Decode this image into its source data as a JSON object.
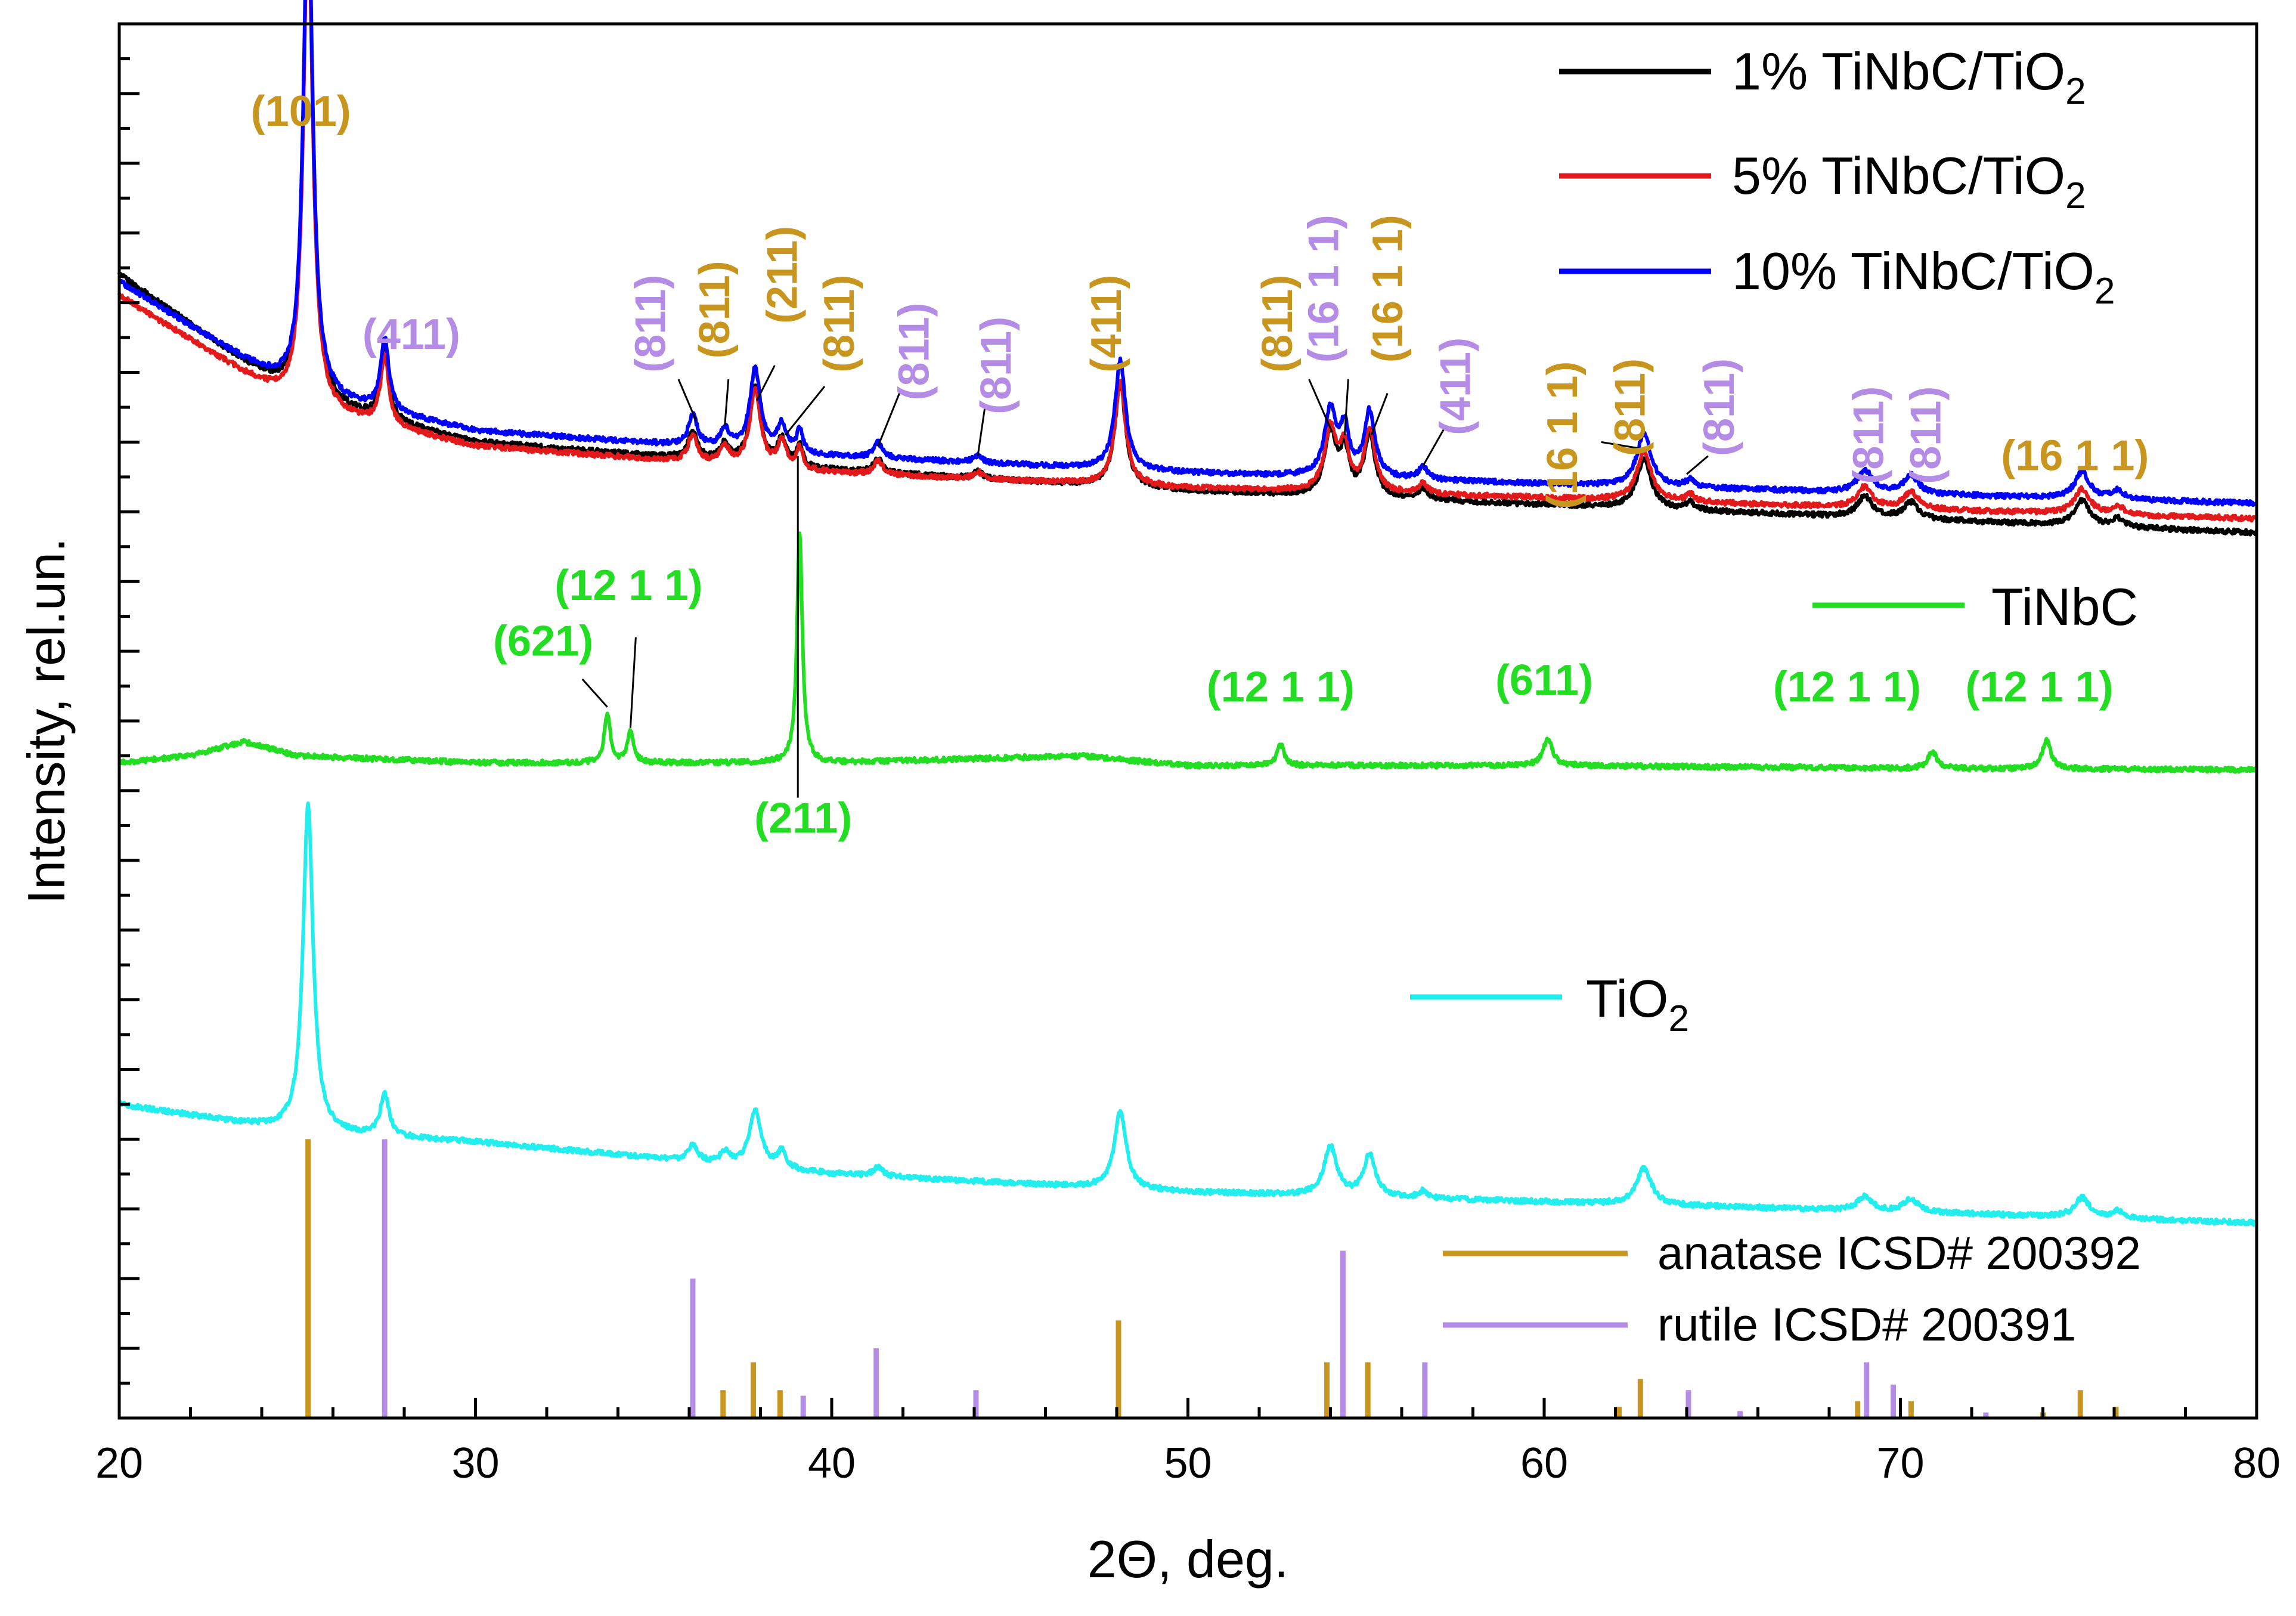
{
  "colors": {
    "black": "#000000",
    "red": "#e31a1c",
    "blue": "#0000ff",
    "green": "#22dd22",
    "cyan": "#22eeee",
    "anatase": "#c8961e",
    "rutile": "#b48ce6"
  },
  "chart_data": {
    "type": "line",
    "xlabel": "2Θ, deg.",
    "ylabel": "Intensity, rel.un.",
    "xlim": [
      20,
      80
    ],
    "x_ticks": [
      "20",
      "30",
      "40",
      "50",
      "60",
      "70",
      "80"
    ],
    "y_ticklabels_shown": false,
    "legend": [
      {
        "key": "s1",
        "text": "1% TiNbC/TiO",
        "sub": "2",
        "color": "#000000"
      },
      {
        "key": "s5",
        "text": "5% TiNbC/TiO",
        "sub": "2",
        "color": "#e31a1c"
      },
      {
        "key": "s10",
        "text": "10% TiNbC/TiO",
        "sub": "2",
        "color": "#0000ff"
      },
      {
        "key": "tinbc",
        "text": "TiNbC",
        "sub": "",
        "color": "#22dd22"
      },
      {
        "key": "tio2",
        "text": "TiO",
        "sub": "2",
        "color": "#22eeee"
      },
      {
        "key": "anatase",
        "text": "anatase ICSD# 200392",
        "sub": "",
        "color": "#c8961e"
      },
      {
        "key": "rutile",
        "text": "rutile      ICSD# 200391",
        "sub": "",
        "color": "#b48ce6"
      }
    ],
    "series": [
      {
        "name": "1% TiNbC/TiO2",
        "color": "#000000",
        "baseline": [
          [
            20,
            0.82
          ],
          [
            25,
            0.73
          ],
          [
            30,
            0.7
          ],
          [
            40,
            0.68
          ],
          [
            50,
            0.665
          ],
          [
            60,
            0.655
          ],
          [
            70,
            0.645
          ],
          [
            80,
            0.635
          ]
        ],
        "peaks": [
          [
            25.3,
            0.355,
            0.16
          ],
          [
            27.45,
            0.05,
            0.14
          ],
          [
            36.1,
            0.02,
            0.15
          ],
          [
            37.0,
            0.012,
            0.15
          ],
          [
            37.85,
            0.055,
            0.18
          ],
          [
            38.6,
            0.018,
            0.15
          ],
          [
            39.1,
            0.015,
            0.1
          ],
          [
            41.3,
            0.01,
            0.15
          ],
          [
            44.1,
            0.005,
            0.15
          ],
          [
            48.1,
            0.075,
            0.18
          ],
          [
            54.0,
            0.045,
            0.2
          ],
          [
            54.4,
            0.03,
            0.15
          ],
          [
            55.1,
            0.045,
            0.18
          ],
          [
            56.6,
            0.008,
            0.15
          ],
          [
            62.8,
            0.035,
            0.25
          ],
          [
            64.1,
            0.005,
            0.15
          ],
          [
            69.0,
            0.015,
            0.25
          ],
          [
            70.3,
            0.012,
            0.25
          ],
          [
            75.1,
            0.018,
            0.25
          ],
          [
            76.1,
            0.006,
            0.2
          ]
        ]
      },
      {
        "name": "5% TiNbC/TiO2",
        "color": "#e31a1c",
        "baseline": [
          [
            20,
            0.805
          ],
          [
            25,
            0.725
          ],
          [
            30,
            0.697
          ],
          [
            40,
            0.678
          ],
          [
            50,
            0.667
          ],
          [
            60,
            0.66
          ],
          [
            70,
            0.652
          ],
          [
            80,
            0.645
          ]
        ],
        "peaks": [
          [
            25.3,
            0.355,
            0.16
          ],
          [
            27.45,
            0.05,
            0.14
          ],
          [
            36.1,
            0.02,
            0.15
          ],
          [
            37.0,
            0.012,
            0.15
          ],
          [
            37.85,
            0.055,
            0.18
          ],
          [
            38.6,
            0.018,
            0.15
          ],
          [
            39.1,
            0.015,
            0.1
          ],
          [
            41.3,
            0.01,
            0.15
          ],
          [
            44.1,
            0.005,
            0.15
          ],
          [
            48.1,
            0.075,
            0.18
          ],
          [
            54.0,
            0.045,
            0.2
          ],
          [
            54.4,
            0.03,
            0.15
          ],
          [
            55.1,
            0.045,
            0.18
          ],
          [
            56.6,
            0.008,
            0.15
          ],
          [
            62.8,
            0.035,
            0.25
          ],
          [
            64.1,
            0.005,
            0.15
          ],
          [
            69.0,
            0.015,
            0.25
          ],
          [
            70.3,
            0.012,
            0.25
          ],
          [
            75.1,
            0.018,
            0.25
          ],
          [
            76.1,
            0.006,
            0.2
          ]
        ]
      },
      {
        "name": "10% TiNbC/TiO2",
        "color": "#0000ff",
        "baseline": [
          [
            20,
            0.815
          ],
          [
            25,
            0.735
          ],
          [
            30,
            0.708
          ],
          [
            40,
            0.69
          ],
          [
            50,
            0.678
          ],
          [
            60,
            0.67
          ],
          [
            70,
            0.663
          ],
          [
            80,
            0.656
          ]
        ],
        "peaks": [
          [
            25.3,
            0.36,
            0.16
          ],
          [
            27.45,
            0.052,
            0.14
          ],
          [
            36.1,
            0.022,
            0.15
          ],
          [
            37.0,
            0.013,
            0.15
          ],
          [
            37.85,
            0.058,
            0.18
          ],
          [
            38.6,
            0.019,
            0.15
          ],
          [
            39.1,
            0.016,
            0.1
          ],
          [
            41.3,
            0.011,
            0.15
          ],
          [
            44.1,
            0.005,
            0.15
          ],
          [
            48.1,
            0.078,
            0.18
          ],
          [
            54.0,
            0.047,
            0.2
          ],
          [
            54.4,
            0.032,
            0.15
          ],
          [
            55.1,
            0.047,
            0.18
          ],
          [
            56.6,
            0.009,
            0.15
          ],
          [
            62.8,
            0.037,
            0.25
          ],
          [
            64.1,
            0.005,
            0.15
          ],
          [
            69.0,
            0.016,
            0.25
          ],
          [
            70.3,
            0.013,
            0.25
          ],
          [
            75.1,
            0.019,
            0.25
          ],
          [
            76.1,
            0.006,
            0.2
          ]
        ]
      },
      {
        "name": "TiNbC",
        "color": "#22dd22",
        "baseline": [
          [
            20,
            0.47
          ],
          [
            22,
            0.475
          ],
          [
            23.5,
            0.485
          ],
          [
            25,
            0.475
          ],
          [
            30,
            0.47
          ],
          [
            40,
            0.47
          ],
          [
            47,
            0.475
          ],
          [
            50,
            0.468
          ],
          [
            60,
            0.468
          ],
          [
            70,
            0.466
          ],
          [
            80,
            0.465
          ]
        ],
        "peaks": [
          [
            33.7,
            0.035,
            0.1
          ],
          [
            34.35,
            0.022,
            0.1
          ],
          [
            39.1,
            0.165,
            0.09
          ],
          [
            52.6,
            0.015,
            0.12
          ],
          [
            60.1,
            0.02,
            0.15
          ],
          [
            70.9,
            0.012,
            0.15
          ],
          [
            74.1,
            0.02,
            0.15
          ]
        ]
      },
      {
        "name": "TiO2",
        "color": "#22eeee",
        "baseline": [
          [
            20,
            0.225
          ],
          [
            25,
            0.205
          ],
          [
            30,
            0.198
          ],
          [
            40,
            0.175
          ],
          [
            50,
            0.162
          ],
          [
            60,
            0.155
          ],
          [
            70,
            0.148
          ],
          [
            80,
            0.14
          ]
        ],
        "peaks": [
          [
            25.3,
            0.235,
            0.17
          ],
          [
            27.45,
            0.03,
            0.15
          ],
          [
            36.1,
            0.012,
            0.15
          ],
          [
            37.0,
            0.008,
            0.15
          ],
          [
            37.85,
            0.04,
            0.2
          ],
          [
            38.6,
            0.012,
            0.15
          ],
          [
            41.3,
            0.007,
            0.15
          ],
          [
            48.1,
            0.055,
            0.2
          ],
          [
            54.0,
            0.035,
            0.22
          ],
          [
            55.1,
            0.03,
            0.2
          ],
          [
            56.6,
            0.005,
            0.15
          ],
          [
            62.8,
            0.026,
            0.25
          ],
          [
            69.0,
            0.01,
            0.25
          ],
          [
            70.3,
            0.009,
            0.25
          ],
          [
            75.1,
            0.014,
            0.25
          ],
          [
            76.1,
            0.005,
            0.2
          ]
        ]
      }
    ],
    "reference_sticks": {
      "anatase": {
        "name": "anatase ICSD# 200392",
        "color": "#c8961e",
        "sticks": [
          [
            25.3,
            0.2
          ],
          [
            36.95,
            0.02
          ],
          [
            37.8,
            0.04
          ],
          [
            38.55,
            0.02
          ],
          [
            48.05,
            0.07
          ],
          [
            53.9,
            0.04
          ],
          [
            55.05,
            0.04
          ],
          [
            62.1,
            0.008
          ],
          [
            62.7,
            0.028
          ],
          [
            68.8,
            0.012
          ],
          [
            70.3,
            0.012
          ],
          [
            74.0,
            0.004
          ],
          [
            75.05,
            0.02
          ],
          [
            76.05,
            0.008
          ]
        ]
      },
      "rutile": {
        "name": "rutile      ICSD# 200391",
        "color": "#b48ce6",
        "sticks": [
          [
            27.45,
            0.2
          ],
          [
            36.1,
            0.1
          ],
          [
            39.2,
            0.016
          ],
          [
            41.25,
            0.05
          ],
          [
            44.05,
            0.02
          ],
          [
            54.35,
            0.12
          ],
          [
            56.65,
            0.04
          ],
          [
            64.05,
            0.02
          ],
          [
            65.5,
            0.005
          ],
          [
            69.05,
            0.04
          ],
          [
            69.8,
            0.024
          ],
          [
            72.4,
            0.004
          ]
        ]
      }
    },
    "annotations": [
      {
        "text": "(101)",
        "x": 25.1,
        "y": 0.935,
        "color": "#c8961e",
        "rot": 0
      },
      {
        "text": "(411)",
        "x": 28.2,
        "y": 0.775,
        "color": "#b48ce6",
        "rot": 0
      },
      {
        "text": "(811)",
        "x": 35.0,
        "y": 0.785,
        "color": "#b48ce6",
        "rot": -90
      },
      {
        "text": "(811)",
        "x": 36.8,
        "y": 0.795,
        "color": "#c8961e",
        "rot": -90
      },
      {
        "text": "(211)",
        "x": 38.7,
        "y": 0.82,
        "color": "#c8961e",
        "rot": -90
      },
      {
        "text": "(811)",
        "x": 40.3,
        "y": 0.785,
        "color": "#c8961e",
        "rot": -90
      },
      {
        "text": "(811)",
        "x": 42.4,
        "y": 0.765,
        "color": "#b48ce6",
        "rot": -90
      },
      {
        "text": "(811)",
        "x": 44.7,
        "y": 0.755,
        "color": "#b48ce6",
        "rot": -90
      },
      {
        "text": "(411)",
        "x": 47.8,
        "y": 0.785,
        "color": "#c8961e",
        "rot": -90
      },
      {
        "text": "(811)",
        "x": 52.6,
        "y": 0.785,
        "color": "#c8961e",
        "rot": -90
      },
      {
        "text": "(16 1 1)",
        "x": 53.9,
        "y": 0.81,
        "color": "#b48ce6",
        "rot": -90
      },
      {
        "text": "(16 1 1)",
        "x": 55.7,
        "y": 0.81,
        "color": "#c8961e",
        "rot": -90
      },
      {
        "text": "(411)",
        "x": 57.6,
        "y": 0.74,
        "color": "#b48ce6",
        "rot": -90
      },
      {
        "text": "(16 1 1)",
        "x": 60.6,
        "y": 0.705,
        "color": "#c8961e",
        "rot": -90
      },
      {
        "text": "(811)",
        "x": 62.5,
        "y": 0.725,
        "color": "#c8961e",
        "rot": -90
      },
      {
        "text": "(811)",
        "x": 65.0,
        "y": 0.725,
        "color": "#b48ce6",
        "rot": -90
      },
      {
        "text": "(811)",
        "x": 69.2,
        "y": 0.705,
        "color": "#b48ce6",
        "rot": -90
      },
      {
        "text": "(811)",
        "x": 70.8,
        "y": 0.705,
        "color": "#b48ce6",
        "rot": -90
      },
      {
        "text": "(16 1 1)",
        "x": 74.9,
        "y": 0.688,
        "color": "#c8961e",
        "rot": 0
      },
      {
        "text": "(621)",
        "x": 31.9,
        "y": 0.555,
        "color": "#22dd22",
        "rot": 0
      },
      {
        "text": "(12 1 1)",
        "x": 34.3,
        "y": 0.595,
        "color": "#22dd22",
        "rot": 0
      },
      {
        "text": "(211)",
        "x": 39.2,
        "y": 0.428,
        "color": "#22dd22",
        "rot": 0
      },
      {
        "text": "(12 1 1)",
        "x": 52.6,
        "y": 0.522,
        "color": "#22dd22",
        "rot": 0
      },
      {
        "text": "(611)",
        "x": 60.0,
        "y": 0.527,
        "color": "#22dd22",
        "rot": 0
      },
      {
        "text": "(12 1 1)",
        "x": 68.5,
        "y": 0.522,
        "color": "#22dd22",
        "rot": 0
      },
      {
        "text": "(12 1 1)",
        "x": 73.9,
        "y": 0.522,
        "color": "#22dd22",
        "rot": 0
      }
    ],
    "leader_lines": [
      [
        36.2,
        0.715,
        35.7,
        0.745
      ],
      [
        37.0,
        0.712,
        37.1,
        0.745
      ],
      [
        37.9,
        0.73,
        38.4,
        0.755
      ],
      [
        38.7,
        0.705,
        39.8,
        0.74
      ],
      [
        41.3,
        0.697,
        41.9,
        0.735
      ],
      [
        44.1,
        0.69,
        44.3,
        0.725
      ],
      [
        54.05,
        0.707,
        53.4,
        0.745
      ],
      [
        54.4,
        0.705,
        54.5,
        0.745
      ],
      [
        55.15,
        0.705,
        55.6,
        0.735
      ],
      [
        56.6,
        0.683,
        57.2,
        0.71
      ],
      [
        62.8,
        0.695,
        61.6,
        0.7
      ],
      [
        64.0,
        0.677,
        64.6,
        0.69
      ],
      [
        33.7,
        0.51,
        33.0,
        0.53
      ],
      [
        34.35,
        0.495,
        34.5,
        0.56
      ],
      [
        39.05,
        0.445,
        39.05,
        0.69
      ]
    ]
  }
}
